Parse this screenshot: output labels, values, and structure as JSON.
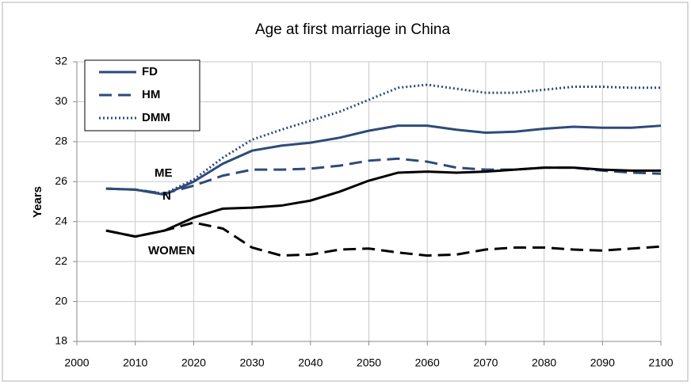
{
  "chart_data": {
    "type": "line",
    "title": "Age at first marriage in China",
    "y_label": "Years",
    "annotations": [
      "ME",
      "N",
      "WOMEN"
    ],
    "x": [
      2005,
      2010,
      2015,
      2020,
      2025,
      2030,
      2035,
      2040,
      2045,
      2050,
      2055,
      2060,
      2065,
      2070,
      2075,
      2080,
      2085,
      2090,
      2095,
      2100
    ],
    "series": [
      {
        "name": "FD",
        "color": "#2e4a7a",
        "dash": "solid",
        "values": [
          25.65,
          25.6,
          25.35,
          26.0,
          26.9,
          27.55,
          27.8,
          27.95,
          28.2,
          28.55,
          28.8,
          28.8,
          28.6,
          28.45,
          28.5,
          28.65,
          28.75,
          28.7,
          28.7,
          28.8
        ]
      },
      {
        "name": "HM",
        "color": "#2e4a7a",
        "dash": "dashed",
        "values": [
          25.65,
          25.6,
          25.4,
          25.8,
          26.3,
          26.6,
          26.6,
          26.65,
          26.8,
          27.05,
          27.15,
          27.0,
          26.7,
          26.6,
          26.6,
          26.7,
          26.7,
          26.55,
          26.45,
          26.4
        ]
      },
      {
        "name": "DMM",
        "color": "#2e4a7a",
        "dash": "dotted",
        "values": [
          25.65,
          25.6,
          25.4,
          26.1,
          27.2,
          28.1,
          28.6,
          29.05,
          29.5,
          30.1,
          30.7,
          30.85,
          30.65,
          30.45,
          30.45,
          30.6,
          30.75,
          30.75,
          30.7,
          30.7
        ]
      },
      {
        "color": "#000000",
        "dash": "solid",
        "values": [
          23.55,
          23.25,
          23.55,
          24.2,
          24.65,
          24.7,
          24.8,
          25.05,
          25.5,
          26.05,
          26.45,
          26.5,
          26.45,
          26.5,
          26.6,
          26.7,
          26.7,
          26.6,
          26.55,
          26.55
        ]
      },
      {
        "color": "#000000",
        "dash": "dashed",
        "values": [
          23.55,
          23.25,
          23.55,
          23.95,
          23.65,
          22.7,
          22.3,
          22.35,
          22.6,
          22.65,
          22.45,
          22.3,
          22.35,
          22.6,
          22.7,
          22.7,
          22.6,
          22.55,
          22.65,
          22.75
        ]
      }
    ],
    "xlim": [
      2000,
      2100
    ],
    "xticks": [
      2000,
      2010,
      2020,
      2030,
      2040,
      2050,
      2060,
      2070,
      2080,
      2090,
      2100
    ],
    "ylim": [
      18,
      32
    ],
    "yticks": [
      18,
      20,
      22,
      24,
      26,
      28,
      30,
      32
    ],
    "grid": true,
    "legend": "top-left"
  }
}
